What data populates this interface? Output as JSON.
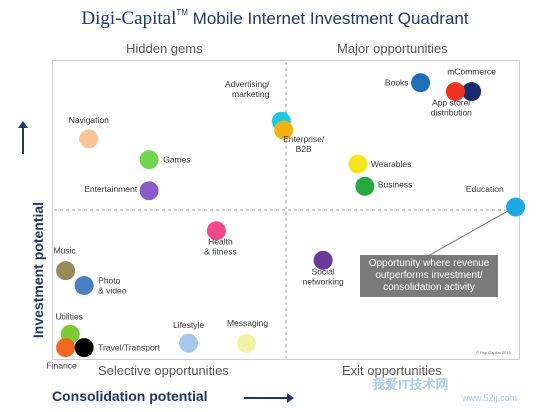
{
  "title": {
    "brand": "Digi-Capital",
    "tm": "TM",
    "rest": "Mobile Internet Investment Quadrant"
  },
  "quadrants": {
    "top_left": "Hidden gems",
    "top_right": "Major opportunities",
    "bottom_left": "Selective opportunities",
    "bottom_right": "Exit opportunities"
  },
  "axes": {
    "ylabel": "Investment potential",
    "xlabel": "Consolidation potential"
  },
  "callout": "Opportunity where revenue outperforms investment/ consolidation activity",
  "copyright": "© Digi-Capital 2013",
  "watermark": {
    "line1": "我爱IT技术网",
    "line2": "www.52ij.com"
  },
  "chart_data": {
    "type": "scatter",
    "xlim": [
      0,
      100
    ],
    "ylim": [
      0,
      100
    ],
    "grid": false,
    "divider": {
      "x": 50,
      "y": 50
    },
    "points": [
      {
        "label": "Books",
        "x": 79,
        "y": 93,
        "color": "#1f6fb5"
      },
      {
        "label": "mCommerce",
        "x": 90,
        "y": 90,
        "color": "#1a2a6e"
      },
      {
        "label": "App store/ distribution",
        "x": 86.5,
        "y": 90,
        "color": "#ee3524"
      },
      {
        "label": "Advertising/ marketing",
        "x": 49,
        "y": 80,
        "color": "#22c4e0"
      },
      {
        "label": "Enterprise/ B2B",
        "x": 49.5,
        "y": 77,
        "color": "#f5b10f"
      },
      {
        "label": "Navigation",
        "x": 7.5,
        "y": 74,
        "color": "#f7c59a"
      },
      {
        "label": "Games",
        "x": 20.5,
        "y": 67,
        "color": "#72d54e"
      },
      {
        "label": "Wearables",
        "x": 65.5,
        "y": 65.5,
        "color": "#f4e51c"
      },
      {
        "label": "Business",
        "x": 67,
        "y": 58,
        "color": "#26a93f"
      },
      {
        "label": "Entertainment",
        "x": 20.5,
        "y": 56.5,
        "color": "#8b5cc9"
      },
      {
        "label": "Education",
        "x": 99.5,
        "y": 51,
        "color": "#1ea8e6"
      },
      {
        "label": "Health & fitness",
        "x": 35,
        "y": 43,
        "color": "#ef4a8a"
      },
      {
        "label": "Social networking",
        "x": 58,
        "y": 33,
        "color": "#6c3a9b"
      },
      {
        "label": "Music",
        "x": 2.5,
        "y": 29.5,
        "color": "#998a5c"
      },
      {
        "label": "Photo & video",
        "x": 6.5,
        "y": 24.5,
        "color": "#4a7fc1"
      },
      {
        "label": "Utilities",
        "x": 3.5,
        "y": 8,
        "color": "#7ccb35"
      },
      {
        "label": "Finance",
        "x": 2.5,
        "y": 3.5,
        "color": "#f2661f"
      },
      {
        "label": "Travel/Transport",
        "x": 6.5,
        "y": 3.5,
        "color": "#000000"
      },
      {
        "label": "Lifestyle",
        "x": 29,
        "y": 5,
        "color": "#a6c8ec"
      },
      {
        "label": "Messaging",
        "x": 41.5,
        "y": 5,
        "color": "#f2f2a6"
      }
    ]
  }
}
